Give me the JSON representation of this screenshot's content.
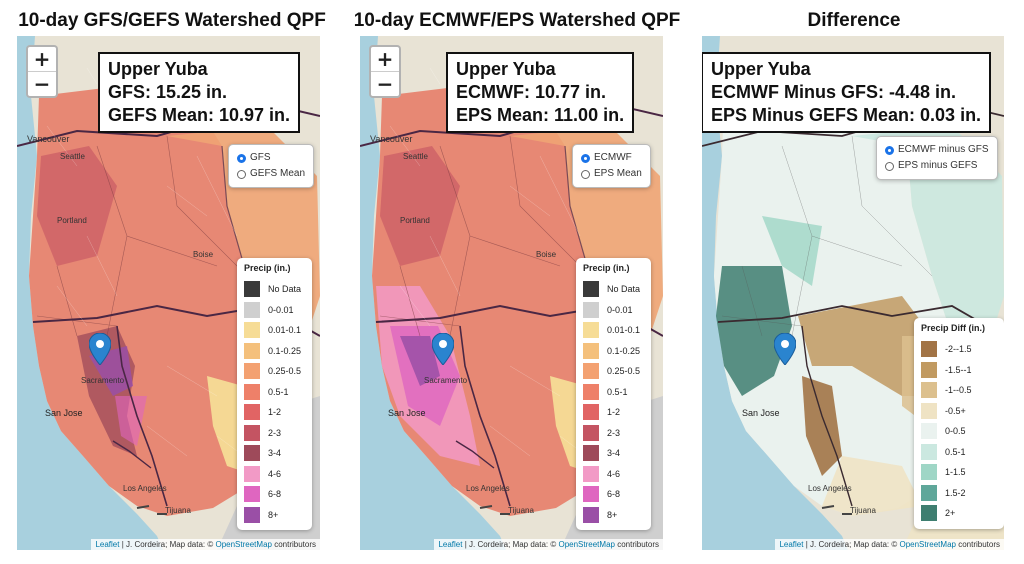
{
  "panels": [
    {
      "title": "10-day GFS/GEFS Watershed QPF",
      "info": [
        "Upper Yuba",
        "GFS: 15.25 in.",
        "GEFS Mean: 10.97 in."
      ],
      "options": [
        {
          "label": "GFS",
          "selected": true
        },
        {
          "label": "GEFS Mean",
          "selected": false
        }
      ],
      "legend_title": "Precip (in.)"
    },
    {
      "title": "10-day ECMWF/EPS Watershed QPF",
      "info": [
        "Upper Yuba",
        "ECMWF: 10.77 in.",
        "EPS Mean: 11.00 in."
      ],
      "options": [
        {
          "label": "ECMWF",
          "selected": true
        },
        {
          "label": "EPS Mean",
          "selected": false
        }
      ],
      "legend_title": "Precip (in.)"
    },
    {
      "title": "Difference",
      "info": [
        "Upper Yuba",
        "ECMWF Minus GFS: -4.48 in.",
        "EPS Minus GEFS Mean: 0.03 in."
      ],
      "options": [
        {
          "label": "ECMWF minus GFS",
          "selected": true
        },
        {
          "label": "EPS minus GEFS",
          "selected": false
        }
      ],
      "legend_title": "Precip Diff (in.)"
    }
  ],
  "zoom": {
    "in": "+",
    "out": "−"
  },
  "precip_legend": [
    {
      "label": "No Data",
      "color": "#3a3a3a"
    },
    {
      "label": "0-0.01",
      "color": "#cfcfcf"
    },
    {
      "label": "0.01-0.1",
      "color": "#f6dc96"
    },
    {
      "label": "0.1-0.25",
      "color": "#f4c07c"
    },
    {
      "label": "0.25-0.5",
      "color": "#f3a171"
    },
    {
      "label": "0.5-1",
      "color": "#ee8069"
    },
    {
      "label": "1-2",
      "color": "#e16464"
    },
    {
      "label": "2-3",
      "color": "#c45462"
    },
    {
      "label": "3-4",
      "color": "#9e4a5a"
    },
    {
      "label": "4-6",
      "color": "#f29ac6"
    },
    {
      "label": "6-8",
      "color": "#df66c0"
    },
    {
      "label": "8+",
      "color": "#9a4fa6"
    }
  ],
  "diff_legend": [
    {
      "label": "-2--1.5",
      "color": "#a27446"
    },
    {
      "label": "-1.5--1",
      "color": "#c19a61"
    },
    {
      "label": "-1--0.5",
      "color": "#dcc08e"
    },
    {
      "label": "-0.5+",
      "color": "#efe3c4"
    },
    {
      "label": "0-0.5",
      "color": "#eaf2ef"
    },
    {
      "label": "0.5-1",
      "color": "#cbe8e0"
    },
    {
      "label": "1-1.5",
      "color": "#9fd6c6"
    },
    {
      "label": "1.5-2",
      "color": "#5fa79a"
    },
    {
      "label": "2+",
      "color": "#3e7e70"
    }
  ],
  "map_labels": {
    "vancouver": "Vancouver",
    "seattle": "Seattle",
    "portland": "Portland",
    "boise": "Boise",
    "sacramento": "Sacramento",
    "sanjose": "San Jose",
    "losangeles": "Los Angeles",
    "tijuana": "Tijuana"
  },
  "attribution": {
    "leaflet": "Leaflet",
    "text1": " | J. Cordeira; Map data: © ",
    "osm": "OpenStreetMap",
    "text2": " contributors"
  },
  "icons": [
    "map-marker-icon",
    "zoom-in-icon",
    "zoom-out-icon"
  ]
}
